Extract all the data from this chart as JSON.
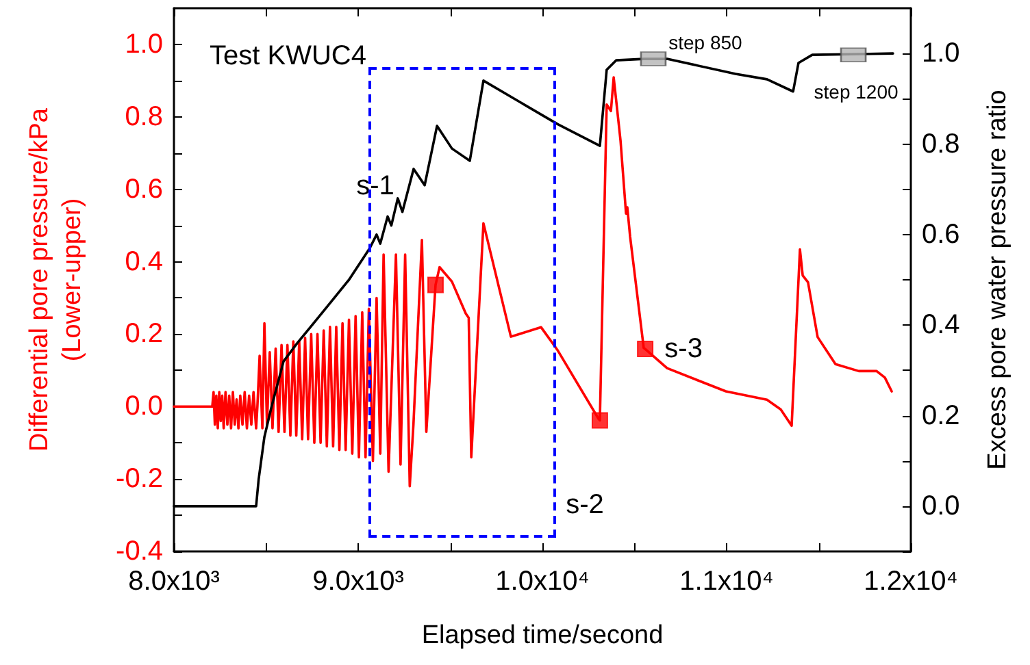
{
  "chart_data": {
    "type": "line",
    "title": "Test KWUC4",
    "xlabel": "Elapsed time/second",
    "ylabel": "Differential pore pressure/kPa\n(Lower-upper)",
    "y2label": "Excess pore water pressure ratio",
    "xlim": [
      8000,
      12000
    ],
    "xticks": [
      {
        "value": 8000,
        "label": "8.0x10³"
      },
      {
        "value": 8500,
        "label": null
      },
      {
        "value": 9000,
        "label": "9.0x10³"
      },
      {
        "value": 9500,
        "label": null
      },
      {
        "value": 10000,
        "label": "1.0x10⁴"
      },
      {
        "value": 10500,
        "label": null
      },
      {
        "value": 11000,
        "label": "1.1x10⁴"
      },
      {
        "value": 11500,
        "label": null
      },
      {
        "value": 12000,
        "label": "1.2x10⁴"
      }
    ],
    "ylim": [
      -0.4,
      1.1
    ],
    "yticks": [
      -0.4,
      {
        "value": -0.3,
        "label": null
      },
      -0.2,
      {
        "value": -0.1,
        "label": null
      },
      {
        "value": 0,
        "label": "0.0"
      },
      {
        "value": 0.1,
        "label": null
      },
      0.2,
      {
        "value": 0.3,
        "label": null
      },
      0.4,
      {
        "value": 0.5,
        "label": null
      },
      0.6,
      {
        "value": 0.7,
        "label": null
      },
      0.8,
      {
        "value": 0.9,
        "label": null
      },
      {
        "value": 1,
        "label": "1.0"
      }
    ],
    "y2lim": [
      -0.1,
      1.1
    ],
    "y2ticks": [
      {
        "value": -0.1,
        "label": null
      },
      {
        "value": 0,
        "label": "0.0"
      },
      {
        "value": 0.1,
        "label": null
      },
      0.2,
      {
        "value": 0.3,
        "label": null
      },
      0.4,
      {
        "value": 0.5,
        "label": null
      },
      0.6,
      {
        "value": 0.7,
        "label": null
      },
      0.8,
      {
        "value": 0.9,
        "label": null
      },
      {
        "value": 1,
        "label": "1.0"
      }
    ],
    "grid": false,
    "marker": "none",
    "line_style": "solid",
    "series": [
      {
        "axis": "y",
        "color": "#ff0000",
        "x": [
          8000,
          8208,
          8215,
          8222,
          8230,
          8238,
          8246,
          8254,
          8262,
          8270,
          8280,
          8290,
          8300,
          8310,
          8320,
          8330,
          8340,
          8350,
          8360,
          8372,
          8384,
          8396,
          8408,
          8420,
          8432,
          8446,
          8453,
          8465,
          8480,
          8491,
          8505,
          8520,
          8535,
          8552,
          8568,
          8584,
          8600,
          8616,
          8632,
          8648,
          8664,
          8680,
          8696,
          8712,
          8728,
          8745,
          8762,
          8779,
          8796,
          8813,
          8830,
          8847,
          8864,
          8881,
          8898,
          8915,
          8932,
          8950,
          8968,
          8986,
          9004,
          9022,
          9040,
          9058,
          9080,
          9100,
          9120,
          9138,
          9165,
          9205,
          9230,
          9255,
          9280,
          9300,
          9346,
          9370,
          9420,
          9442,
          9509,
          9584,
          9600,
          9614,
          9680,
          9829,
          9993,
          10082,
          10305,
          10312,
          10349,
          10372,
          10387,
          10424,
          10454,
          10461,
          10476,
          10550,
          10558,
          10677,
          10996,
          11219,
          11294,
          11353,
          11398,
          11413,
          11442,
          11494,
          11591,
          11717,
          11814,
          11859,
          11896
        ],
        "values": [
          0,
          0,
          0.04,
          -0.05,
          0.03,
          -0.06,
          0.04,
          -0.04,
          0.03,
          -0.06,
          0.04,
          -0.05,
          0.03,
          -0.06,
          0.04,
          -0.05,
          0.02,
          -0.06,
          0.03,
          -0.05,
          0.04,
          -0.06,
          0.03,
          -0.05,
          0.04,
          -0.06,
          0,
          0.14,
          -0.06,
          0.23,
          -0.05,
          0.15,
          -0.06,
          0.16,
          -0.07,
          0.17,
          -0.07,
          0.17,
          -0.08,
          0.18,
          -0.08,
          0.18,
          -0.09,
          0.19,
          -0.09,
          0.2,
          -0.1,
          0.2,
          -0.1,
          0.21,
          -0.11,
          0.22,
          -0.11,
          0.22,
          -0.12,
          0.23,
          -0.12,
          0.24,
          -0.13,
          0.25,
          -0.14,
          0.26,
          -0.14,
          0.27,
          -0.15,
          0.3,
          -0.13,
          0.42,
          -0.18,
          0.42,
          -0.16,
          0.42,
          -0.22,
          -0.05,
          0.46,
          -0.07,
          0.336,
          0.385,
          0.345,
          0.257,
          0.245,
          -0.14,
          0.506,
          0.193,
          0.219,
          0.156,
          -0.034,
          -0.038,
          0.834,
          0.816,
          0.909,
          0.735,
          0.533,
          0.55,
          0.47,
          0.162,
          0.159,
          0.106,
          0.042,
          0.019,
          -0.008,
          -0.053,
          0.434,
          0.362,
          0.343,
          0.192,
          0.117,
          0.098,
          0.098,
          0.08,
          0.042
        ]
      },
      {
        "axis": "y2",
        "color": "#000000",
        "x": [
          8000,
          8446,
          8460,
          8491,
          8530,
          8595,
          8669,
          8750,
          8850,
          8950,
          9063,
          9100,
          9120,
          9160,
          9180,
          9215,
          9240,
          9301,
          9361,
          9428,
          9509,
          9606,
          9680,
          10082,
          10312,
          10349,
          10401,
          10550,
          10677,
          11048,
          11219,
          11361,
          11390,
          11465,
          11903
        ],
        "values": [
          0,
          0,
          0.06,
          0.153,
          0.22,
          0.32,
          0.36,
          0.4,
          0.45,
          0.5,
          0.57,
          0.6,
          0.58,
          0.64,
          0.62,
          0.68,
          0.65,
          0.745,
          0.709,
          0.84,
          0.79,
          0.763,
          0.94,
          0.844,
          0.796,
          0.964,
          0.985,
          0.988,
          0.988,
          0.955,
          0.943,
          0.916,
          0.979,
          0.997,
          1.0
        ]
      },
      {
        "type": "scatter",
        "axis": "y",
        "marker": "square",
        "color": "#ff0000",
        "x": [
          9420,
          10312,
          10558
        ],
        "values": [
          0.336,
          -0.038,
          0.159
        ]
      },
      {
        "type": "scatter",
        "axis": "y2",
        "marker": "square",
        "color": "#b4b4b4",
        "x": [
          10602,
          11688
        ],
        "values": [
          0.988,
          0.997
        ]
      }
    ],
    "annotations": [
      "s-1",
      "s-2",
      "s-3",
      "step 850",
      "step 1200"
    ]
  }
}
